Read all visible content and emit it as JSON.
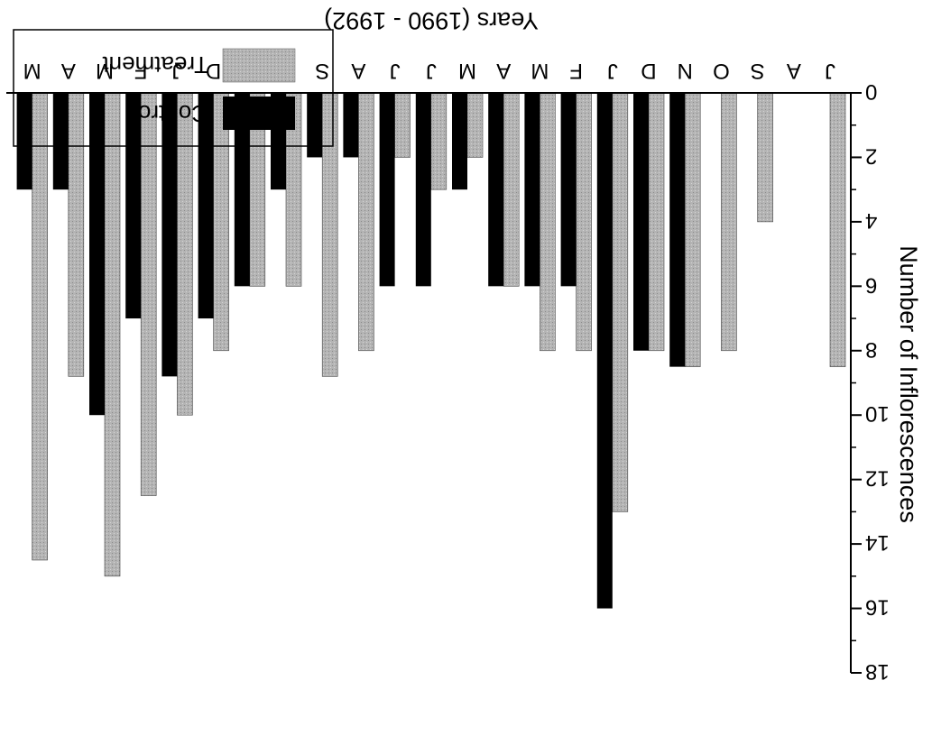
{
  "chart_data": {
    "type": "bar",
    "orientation": "rotated-180",
    "categories": [
      "J",
      "A",
      "S",
      "O",
      "N",
      "D",
      "J",
      "F",
      "M",
      "A",
      "M",
      "J",
      "J",
      "A",
      "S",
      "O",
      "N",
      "D",
      "J",
      "F",
      "M",
      "A",
      "M"
    ],
    "series": [
      {
        "name": "Treatment",
        "values": [
          8.5,
          0,
          4,
          8,
          8.5,
          8,
          13,
          8,
          8,
          6,
          2,
          3,
          2,
          8,
          8.8,
          6,
          6,
          8,
          10,
          12.5,
          15,
          8.8,
          14.5
        ]
      },
      {
        "name": "Control",
        "values": [
          0,
          0,
          0,
          0,
          8.5,
          8,
          16,
          6,
          6,
          6,
          3,
          6,
          6,
          2,
          2,
          3,
          6,
          7,
          8.8,
          7,
          10,
          3,
          3
        ]
      }
    ],
    "xlabel": "Years (1990 - 1992)",
    "ylabel": "Number of Inflorescences",
    "yticks": [
      "0",
      "2",
      "4",
      "6",
      "8",
      "10",
      "12",
      "14",
      "16",
      "18"
    ],
    "ylim": [
      0,
      18
    ],
    "legend_position": "bottom-left"
  },
  "colors": {
    "treatment": "#b0b0b0",
    "control": "#000000"
  }
}
